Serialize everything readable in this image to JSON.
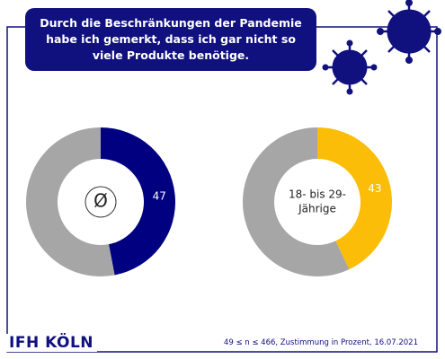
{
  "header": {
    "title": "Durch die Beschränkungen der Pandemie habe ich gemerkt, dass ich gar nicht so viele Produkte benötige."
  },
  "chart_data": [
    {
      "type": "pie",
      "center_label": [
        "Ø"
      ],
      "values": [
        47,
        53
      ],
      "colors": [
        "#000080",
        "#a6a6a6"
      ]
    },
    {
      "type": "pie",
      "center_label": [
        "18- bis 29-",
        "Jährige"
      ],
      "values": [
        43,
        57
      ],
      "colors": [
        "#fbbd07",
        "#a6a6a6"
      ]
    }
  ],
  "footer": {
    "logo": "IFH KÖLN",
    "note": "49 ≤ n ≤ 466, Zustimmung in Prozent, 16.07.2021"
  }
}
